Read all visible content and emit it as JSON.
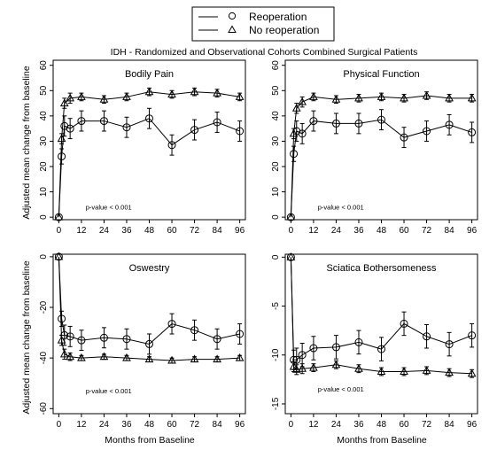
{
  "title": "IDH - Randomized and Observational Cohorts Combined Surgical Patients",
  "legend": {
    "items": [
      {
        "label": "Reoperation",
        "marker": "circle"
      },
      {
        "label": "No reoperation",
        "marker": "triangle"
      }
    ],
    "placement": "top-center"
  },
  "y_axis_label": "Adjusted mean change from baseline",
  "x_axis_label": "Months from Baseline",
  "chart_data": [
    {
      "type": "line",
      "title": "Bodily Pain",
      "annotation": "p-value < 0.001",
      "annotation_pos": [
        3,
        2
      ],
      "x": [
        0,
        1.5,
        3,
        6,
        12,
        24,
        36,
        48,
        60,
        72,
        84,
        96
      ],
      "xticks": [
        0,
        12,
        24,
        36,
        48,
        60,
        72,
        84,
        96
      ],
      "xlim": [
        -3,
        99
      ],
      "ylim": [
        -1,
        62
      ],
      "yticks": [
        0,
        10,
        20,
        30,
        40,
        50,
        60
      ],
      "series": [
        {
          "name": "Reoperation",
          "marker": "circle",
          "values": [
            0,
            24,
            36,
            35,
            38,
            38,
            35.5,
            39,
            28.5,
            34.5,
            37.5,
            34
          ],
          "err": [
            0,
            3,
            4,
            4,
            4,
            4,
            4,
            4,
            4,
            4,
            4,
            4
          ]
        },
        {
          "name": "No reoperation",
          "marker": "triangle",
          "values": [
            0,
            31,
            45,
            47,
            47.5,
            46.5,
            47.5,
            49.5,
            48.5,
            49.5,
            49,
            47.5
          ],
          "err": [
            0,
            2,
            2,
            2,
            1.5,
            1.5,
            1.5,
            1.5,
            1.5,
            1.5,
            1.5,
            1.5
          ]
        }
      ]
    },
    {
      "type": "line",
      "title": "Physical Function",
      "annotation": "p-value < 0.001",
      "annotation_pos": [
        3,
        2
      ],
      "x": [
        0,
        1.5,
        3,
        6,
        12,
        24,
        36,
        48,
        60,
        72,
        84,
        96
      ],
      "xticks": [
        0,
        12,
        24,
        36,
        48,
        60,
        72,
        84,
        96
      ],
      "xlim": [
        -3,
        99
      ],
      "ylim": [
        -1,
        62
      ],
      "yticks": [
        0,
        10,
        20,
        30,
        40,
        50,
        60
      ],
      "series": [
        {
          "name": "Reoperation",
          "marker": "circle",
          "values": [
            0,
            25,
            34,
            33,
            38,
            37,
            37,
            38.5,
            31.5,
            34,
            36.5,
            33.5
          ],
          "err": [
            0,
            3,
            4,
            4,
            4,
            4,
            4,
            4,
            4,
            4,
            4,
            4
          ]
        },
        {
          "name": "No reoperation",
          "marker": "triangle",
          "values": [
            0,
            33,
            43,
            45.5,
            47.5,
            46.5,
            47,
            47.5,
            47,
            48,
            47,
            47
          ],
          "err": [
            0,
            2,
            2,
            2,
            1.5,
            1.5,
            1.5,
            1.5,
            1.5,
            1.5,
            1.5,
            1.5
          ]
        }
      ]
    },
    {
      "type": "line",
      "title": "Oswestry",
      "annotation": "p-value < 0.001",
      "annotation_pos": [
        3,
        -55
      ],
      "x": [
        0,
        1.5,
        3,
        6,
        12,
        24,
        36,
        48,
        60,
        72,
        84,
        96
      ],
      "xticks": [
        0,
        12,
        24,
        36,
        48,
        60,
        72,
        84,
        96
      ],
      "xlim": [
        -3,
        99
      ],
      "ylim": [
        -62,
        1
      ],
      "yticks": [
        0,
        -20,
        -40,
        -60
      ],
      "series": [
        {
          "name": "Reoperation",
          "marker": "circle",
          "values": [
            0,
            -24.5,
            -31,
            -31.5,
            -33,
            -32,
            -32.5,
            -34.5,
            -26.5,
            -29,
            -32.5,
            -30.5
          ],
          "err": [
            0,
            3,
            4,
            4,
            4,
            4,
            4,
            4,
            4,
            4,
            4,
            4
          ]
        },
        {
          "name": "No reoperation",
          "marker": "triangle",
          "values": [
            0,
            -33,
            -38.5,
            -39.5,
            -40,
            -39.5,
            -40,
            -40.5,
            -41,
            -40.5,
            -40.5,
            -40
          ],
          "err": [
            0,
            2,
            2,
            1.5,
            1,
            1,
            1,
            1,
            1,
            1,
            1,
            1
          ]
        }
      ]
    },
    {
      "type": "line",
      "title": "Sciatica Bothersomeness",
      "annotation": "p-value < 0.001",
      "annotation_pos": [
        3,
        -14
      ],
      "x": [
        0,
        1.5,
        3,
        6,
        12,
        24,
        36,
        48,
        60,
        72,
        84,
        96
      ],
      "xticks": [
        0,
        12,
        24,
        36,
        48,
        60,
        72,
        84,
        96
      ],
      "xlim": [
        -3,
        99
      ],
      "ylim": [
        -16,
        0.3
      ],
      "yticks": [
        0,
        -5,
        -10,
        -15
      ],
      "series": [
        {
          "name": "Reoperation",
          "marker": "circle",
          "values": [
            0,
            -10.5,
            -10.5,
            -10,
            -9.3,
            -9.2,
            -8.7,
            -9.4,
            -6.8,
            -8.1,
            -8.9,
            -8
          ],
          "err": [
            0,
            1,
            1.2,
            1.2,
            1.2,
            1.2,
            1.2,
            1.2,
            1.2,
            1.2,
            1.2,
            1.2
          ]
        },
        {
          "name": "No reoperation",
          "marker": "triangle",
          "values": [
            0,
            -11.2,
            -11.5,
            -11.4,
            -11.3,
            -11,
            -11.4,
            -11.7,
            -11.7,
            -11.6,
            -11.8,
            -11.9
          ],
          "err": [
            0,
            0.5,
            0.5,
            0.5,
            0.4,
            0.4,
            0.4,
            0.4,
            0.4,
            0.4,
            0.4,
            0.4
          ]
        }
      ]
    }
  ]
}
